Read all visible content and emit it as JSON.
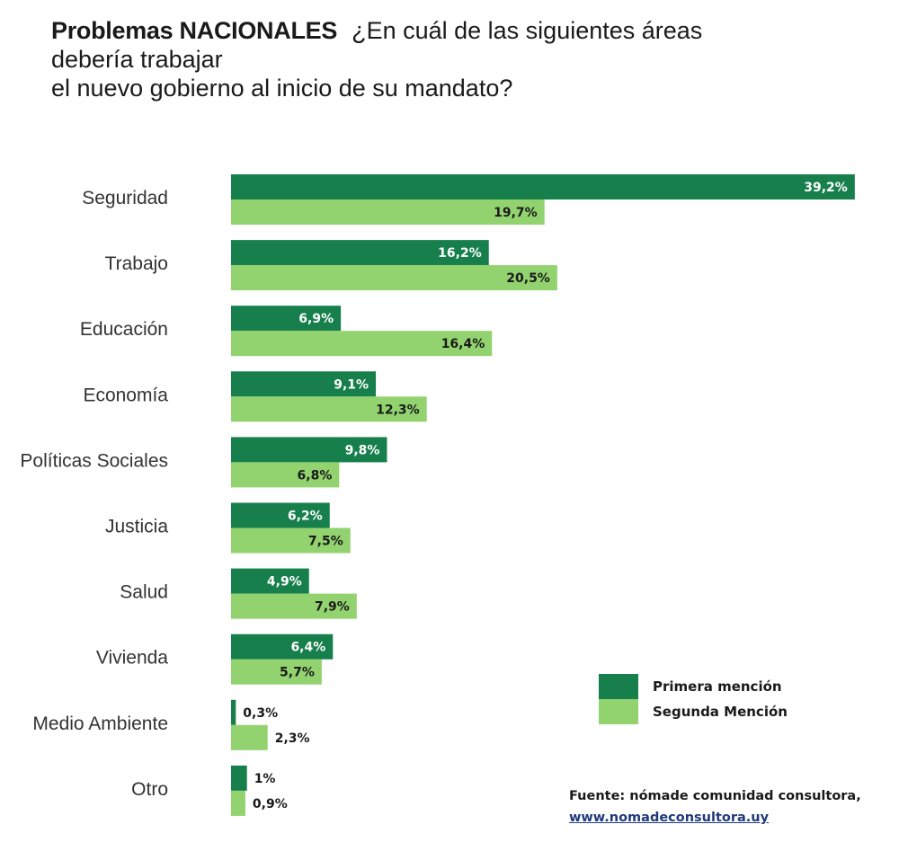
{
  "header": {
    "title_strong": "Problemas NACIONALES",
    "title_line1": "¿En cuál de las siguientes áreas",
    "title_line2": "debería trabajar",
    "title_line3": "el nuevo gobierno al inicio de su mandato?"
  },
  "colors": {
    "primera": "#177f4b",
    "segunda": "#92d36f"
  },
  "chart_data": {
    "type": "bar",
    "orientation": "horizontal",
    "title": "Problemas NACIONALES ¿En cuál de las siguientes áreas debería trabajar el nuevo gobierno al inicio de su mandato?",
    "categories": [
      "Seguridad",
      "Trabajo",
      "Educación",
      "Economía",
      "Políticas Sociales",
      "Justicia",
      "Salud",
      "Vivienda",
      "Medio Ambiente",
      "Otro"
    ],
    "series": [
      {
        "name": "Primera mención",
        "values": [
          39.2,
          16.2,
          6.9,
          9.1,
          9.8,
          6.2,
          4.9,
          6.4,
          0.3,
          1
        ],
        "labels": [
          "39,2%",
          "16,2%",
          "6,9%",
          "9,1%",
          "9,8%",
          "6,2%",
          "4,9%",
          "6,4%",
          "0,3%",
          "1%"
        ]
      },
      {
        "name": "Segunda Mención",
        "values": [
          19.7,
          20.5,
          16.4,
          12.3,
          6.8,
          7.5,
          7.9,
          5.7,
          2.3,
          0.9
        ],
        "labels": [
          "19,7%",
          "20,5%",
          "16,4%",
          "12,3%",
          "6,8%",
          "7,5%",
          "7,9%",
          "5,7%",
          "2,3%",
          "0,9%"
        ]
      }
    ],
    "legend_position": "bottom-right",
    "grid": false
  },
  "legend": {
    "primera_label": "Primera mención",
    "segunda_label": "Segunda Mención"
  },
  "source": {
    "text": "Fuente: nómade comunidad consultora,",
    "link": "www.nomadeconsultora.uy"
  }
}
